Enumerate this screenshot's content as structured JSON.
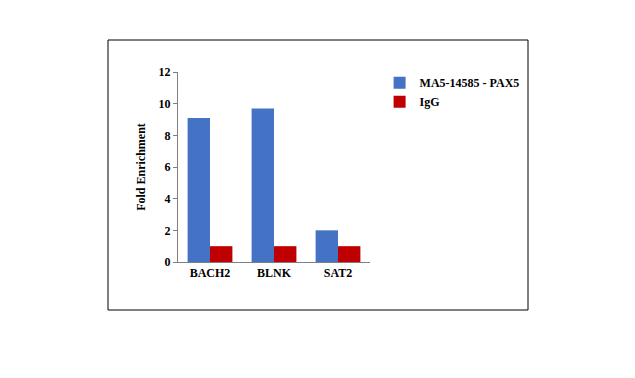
{
  "chart_data": {
    "type": "bar",
    "categories": [
      "BACH2",
      "BLNK",
      "SAT2"
    ],
    "series": [
      {
        "name": "MA5-14585 - PAX5",
        "color": "#4472c4",
        "values": [
          9.1,
          9.7,
          2.0
        ]
      },
      {
        "name": "IgG",
        "color": "#c00000",
        "values": [
          1.0,
          1.0,
          1.0
        ]
      }
    ],
    "y_label": "Fold Enrichment",
    "ylim": [
      0,
      12
    ],
    "yticks": [
      0,
      2,
      4,
      6,
      8,
      10,
      12
    ],
    "grid": false,
    "legend": "right"
  }
}
